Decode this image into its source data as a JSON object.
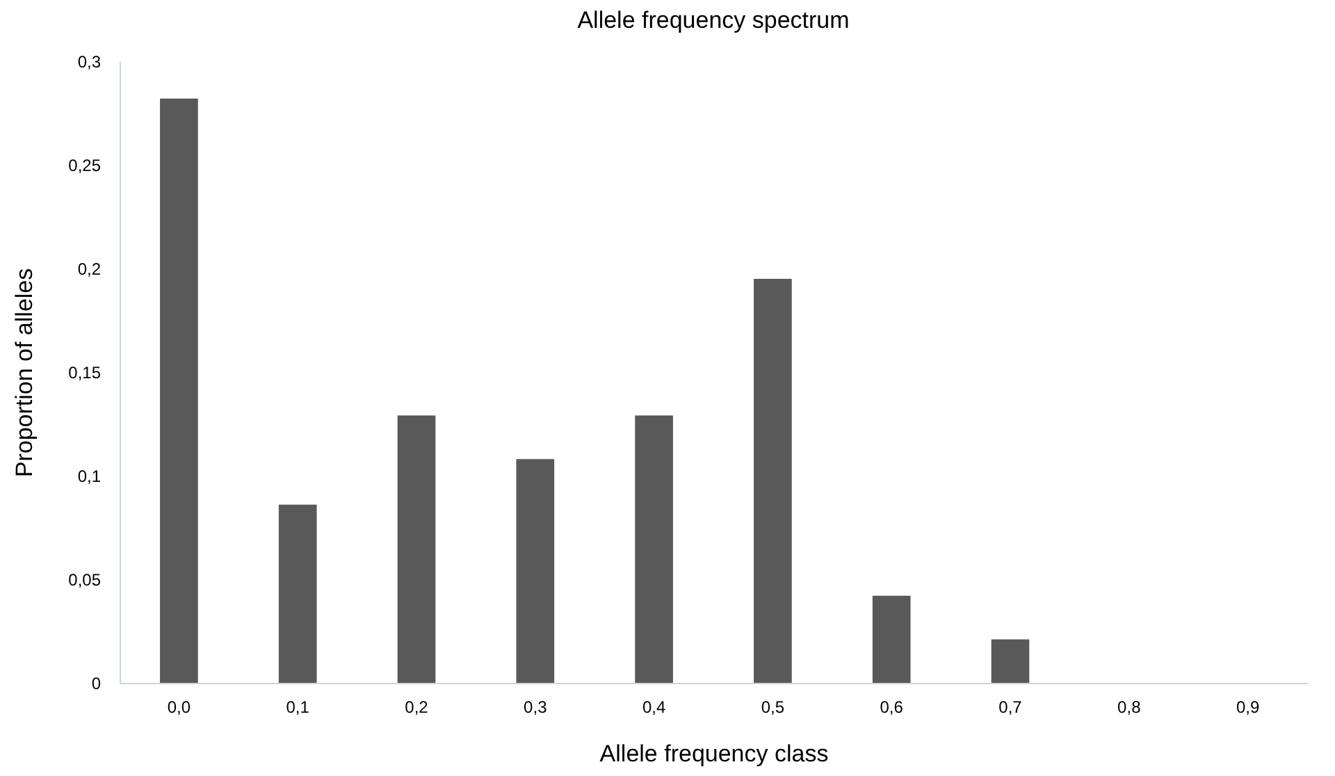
{
  "chart_data": {
    "type": "bar",
    "title": "Allele frequency spectrum",
    "xlabel": "Allele frequency class",
    "ylabel": "Proportion of alleles",
    "categories": [
      "0,0",
      "0,1",
      "0,2",
      "0,3",
      "0,4",
      "0,5",
      "0,6",
      "0,7",
      "0,8",
      "0,9"
    ],
    "values": [
      0.282,
      0.086,
      0.129,
      0.108,
      0.129,
      0.195,
      0.042,
      0.021,
      0,
      0
    ],
    "color": "#595959",
    "ylim": [
      0,
      0.3
    ],
    "yticks": [
      {
        "value": 0,
        "label": "0"
      },
      {
        "value": 0.05,
        "label": "0,05"
      },
      {
        "value": 0.1,
        "label": "0,1"
      },
      {
        "value": 0.15,
        "label": "0,15"
      },
      {
        "value": 0.2,
        "label": "0,2"
      },
      {
        "value": 0.25,
        "label": "0,25"
      },
      {
        "value": 0.3,
        "label": "0,3"
      }
    ],
    "grid": false
  }
}
